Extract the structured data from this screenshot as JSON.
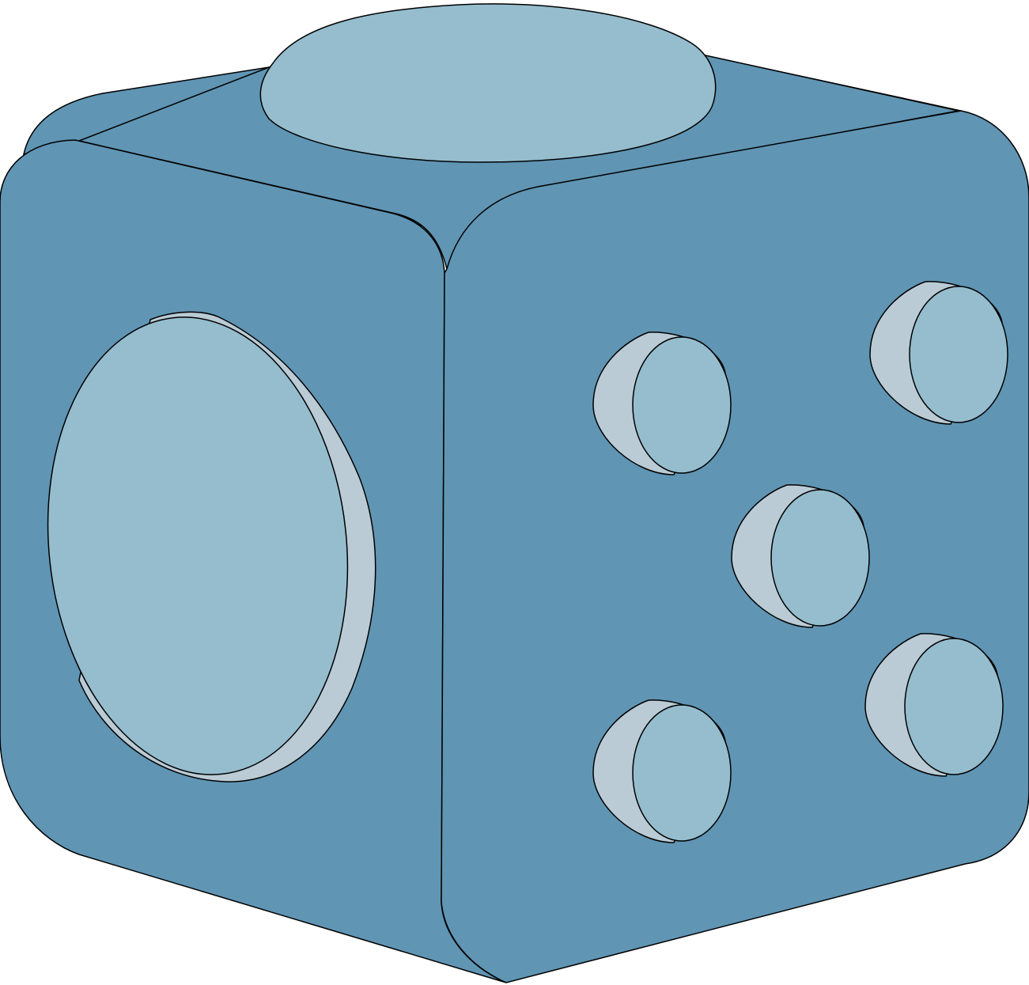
{
  "illustration": {
    "subject": "fidget-cube",
    "background_color": "#ffffff",
    "colors": {
      "body": "#6095b4",
      "button": "#95bdce",
      "button_rim": "#bacbd5",
      "outline": "#000000"
    },
    "faces": {
      "top": {
        "feature": "dome-button"
      },
      "left": {
        "feature": "large-round-button"
      },
      "right": {
        "feature": "dot-buttons",
        "dot_count": 5
      }
    }
  }
}
